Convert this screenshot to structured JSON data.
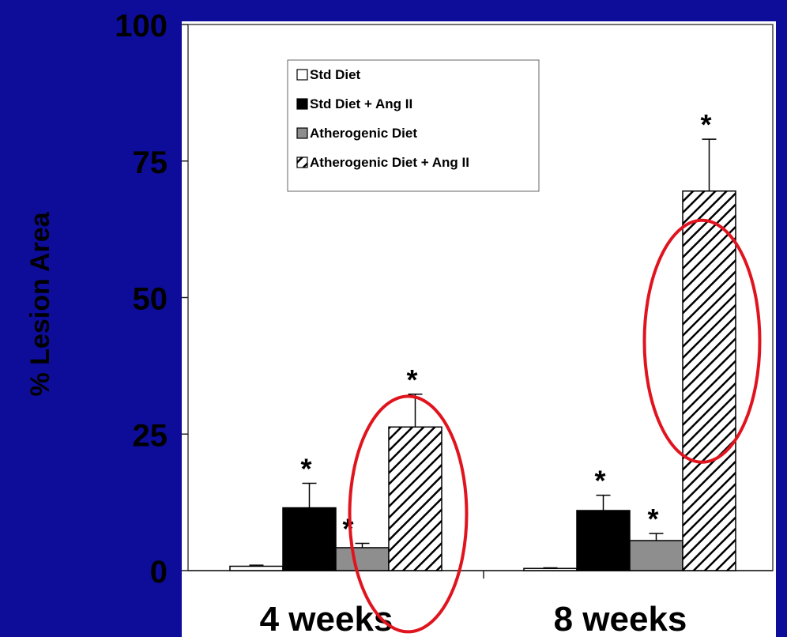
{
  "background_color": "#0d0d9a",
  "plot_background": "#ffffff",
  "highlight_color": "#e0141e",
  "chart_data": {
    "type": "bar",
    "title": "",
    "xlabel": "",
    "ylabel": "% Lesion Area",
    "ylim": [
      0,
      100
    ],
    "yticks": [
      0,
      25,
      50,
      75,
      100
    ],
    "categories": [
      "4 weeks",
      "8 weeks"
    ],
    "legend_position": "top-left",
    "series": [
      {
        "name": "Std Diet",
        "fill": "white",
        "values": [
          0.8,
          0.4
        ],
        "errors": [
          0.2,
          0.1
        ],
        "significant": [
          false,
          false
        ]
      },
      {
        "name": "Std Diet + Ang II",
        "fill": "black",
        "values": [
          11.5,
          11
        ],
        "errors": [
          4.5,
          2.8
        ],
        "significant": [
          true,
          true
        ]
      },
      {
        "name": "Atherogenic Diet",
        "fill": "gray",
        "values": [
          4.2,
          5.5
        ],
        "errors": [
          0.8,
          1.3
        ],
        "significant": [
          true,
          true
        ]
      },
      {
        "name": "Atherogenic Diet + Ang II",
        "fill": "hatch",
        "values": [
          26.3,
          69.5
        ],
        "errors": [
          6.0,
          9.5
        ],
        "significant": [
          true,
          true
        ]
      }
    ],
    "significance_marker": "*",
    "highlighted_bars": [
      {
        "series": 3,
        "category": 0
      },
      {
        "series": 3,
        "category": 1
      }
    ]
  }
}
